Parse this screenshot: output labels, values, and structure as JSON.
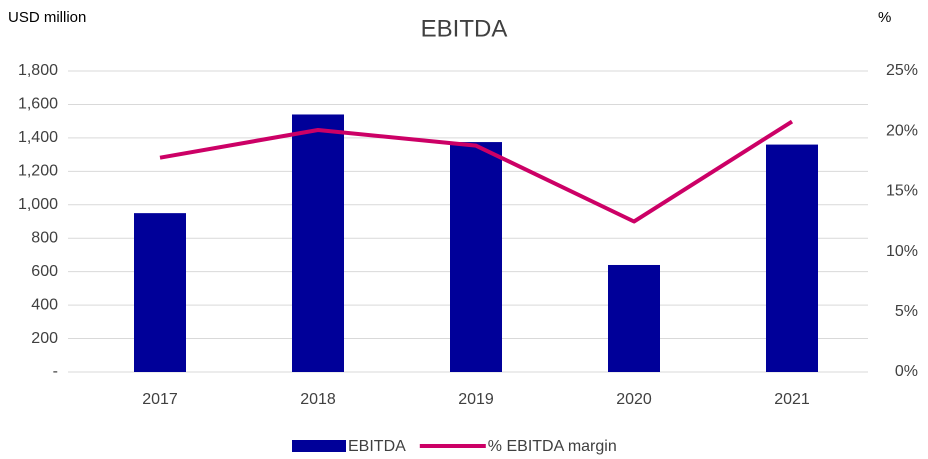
{
  "chart_data": {
    "type": "bar_line",
    "title": "EBITDA",
    "y_label": "USD million",
    "y2_label": "%",
    "categories": [
      "2017",
      "2018",
      "2019",
      "2020",
      "2021"
    ],
    "series": [
      {
        "name": "EBITDA",
        "type": "bar",
        "color": "#000099",
        "values": [
          950,
          1540,
          1375,
          640,
          1360
        ]
      },
      {
        "name": "% EBITDA margin",
        "type": "line",
        "axis": "y2",
        "color": "#cc0066",
        "values": [
          17.8,
          20.1,
          18.8,
          12.5,
          20.8
        ]
      }
    ],
    "ylim": [
      0,
      1800
    ],
    "yticks": [
      {
        "value": 0,
        "label": "-"
      },
      200,
      400,
      600,
      800,
      {
        "value": 1000,
        "label": "1,000"
      },
      {
        "value": 1200,
        "label": "1,200"
      },
      {
        "value": 1400,
        "label": "1,400"
      },
      {
        "value": 1600,
        "label": "1,600"
      },
      {
        "value": 1800,
        "label": "1,800"
      }
    ],
    "y2lim": [
      0,
      25
    ],
    "y2ticks": [
      {
        "value": 0,
        "label": "0%"
      },
      {
        "value": 5,
        "label": "5%"
      },
      {
        "value": 10,
        "label": "10%"
      },
      {
        "value": 15,
        "label": "15%"
      },
      {
        "value": 20,
        "label": "20%"
      },
      {
        "value": 25,
        "label": "25%"
      }
    ],
    "grid": true,
    "legend": "bottom"
  }
}
